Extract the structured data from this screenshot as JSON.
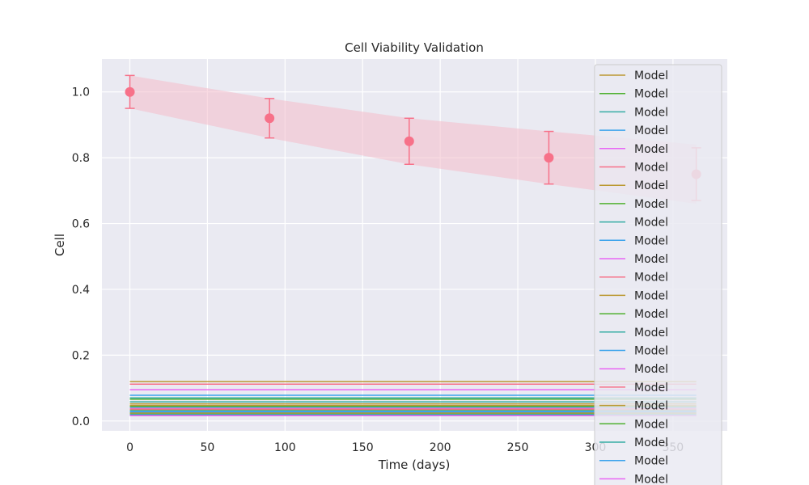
{
  "chart_data": {
    "type": "line",
    "title": "Cell Viability Validation",
    "xlabel": "Time (days)",
    "ylabel": "Cell",
    "xlim": [
      -18,
      385
    ],
    "ylim": [
      -0.03,
      1.1
    ],
    "xticks": [
      0,
      50,
      100,
      150,
      200,
      250,
      300,
      350
    ],
    "yticks": [
      0.0,
      0.2,
      0.4,
      0.6,
      0.8,
      1.0
    ],
    "xtick_labels": [
      "0",
      "50",
      "100",
      "150",
      "200",
      "250",
      "300",
      "350"
    ],
    "ytick_labels": [
      "0.0",
      "0.2",
      "0.4",
      "0.6",
      "0.8",
      "1.0"
    ],
    "grid": true,
    "background": "#eaeaf2",
    "legend_position": "upper right",
    "observed": {
      "color": "#f77189",
      "x": [
        0,
        90,
        180,
        270,
        365
      ],
      "y": [
        1.0,
        0.92,
        0.85,
        0.8,
        0.75
      ],
      "yerr": [
        0.05,
        0.06,
        0.07,
        0.08,
        0.08
      ]
    },
    "band": {
      "color": "#f4bccb",
      "x": [
        0,
        90,
        180,
        270,
        365
      ],
      "lower": [
        0.95,
        0.86,
        0.78,
        0.72,
        0.66
      ],
      "upper": [
        1.05,
        0.98,
        0.92,
        0.88,
        0.84
      ]
    },
    "model_x": [
      0,
      365
    ],
    "series": [
      {
        "name": "Model",
        "color": "#bb9832",
        "value": 0.12
      },
      {
        "name": "Model",
        "color": "#50b131",
        "value": 0.034
      },
      {
        "name": "Model",
        "color": "#36ada4",
        "value": 0.058
      },
      {
        "name": "Model",
        "color": "#3ba3ec",
        "value": 0.042
      },
      {
        "name": "Model",
        "color": "#e866f4",
        "value": 0.095
      },
      {
        "name": "Model",
        "color": "#f77189",
        "value": 0.112
      },
      {
        "name": "Model",
        "color": "#bb9832",
        "value": 0.047
      },
      {
        "name": "Model",
        "color": "#50b131",
        "value": 0.066
      },
      {
        "name": "Model",
        "color": "#36ada4",
        "value": 0.026
      },
      {
        "name": "Model",
        "color": "#3ba3ec",
        "value": 0.078
      },
      {
        "name": "Model",
        "color": "#e866f4",
        "value": 0.038
      },
      {
        "name": "Model",
        "color": "#f77189",
        "value": 0.03
      },
      {
        "name": "Model",
        "color": "#bb9832",
        "value": 0.052
      },
      {
        "name": "Model",
        "color": "#50b131",
        "value": 0.022
      },
      {
        "name": "Model",
        "color": "#36ada4",
        "value": 0.07
      },
      {
        "name": "Model",
        "color": "#3ba3ec",
        "value": 0.03
      },
      {
        "name": "Model",
        "color": "#e866f4",
        "value": 0.018
      },
      {
        "name": "Model",
        "color": "#f77189",
        "value": 0.036
      },
      {
        "name": "Model",
        "color": "#bb9832",
        "value": 0.024
      },
      {
        "name": "Model",
        "color": "#50b131",
        "value": 0.044
      },
      {
        "name": "Model",
        "color": "#36ada4",
        "value": 0.02
      },
      {
        "name": "Model",
        "color": "#3ba3ec",
        "value": 0.028
      },
      {
        "name": "Model",
        "color": "#e866f4",
        "value": 0.016
      }
    ]
  }
}
